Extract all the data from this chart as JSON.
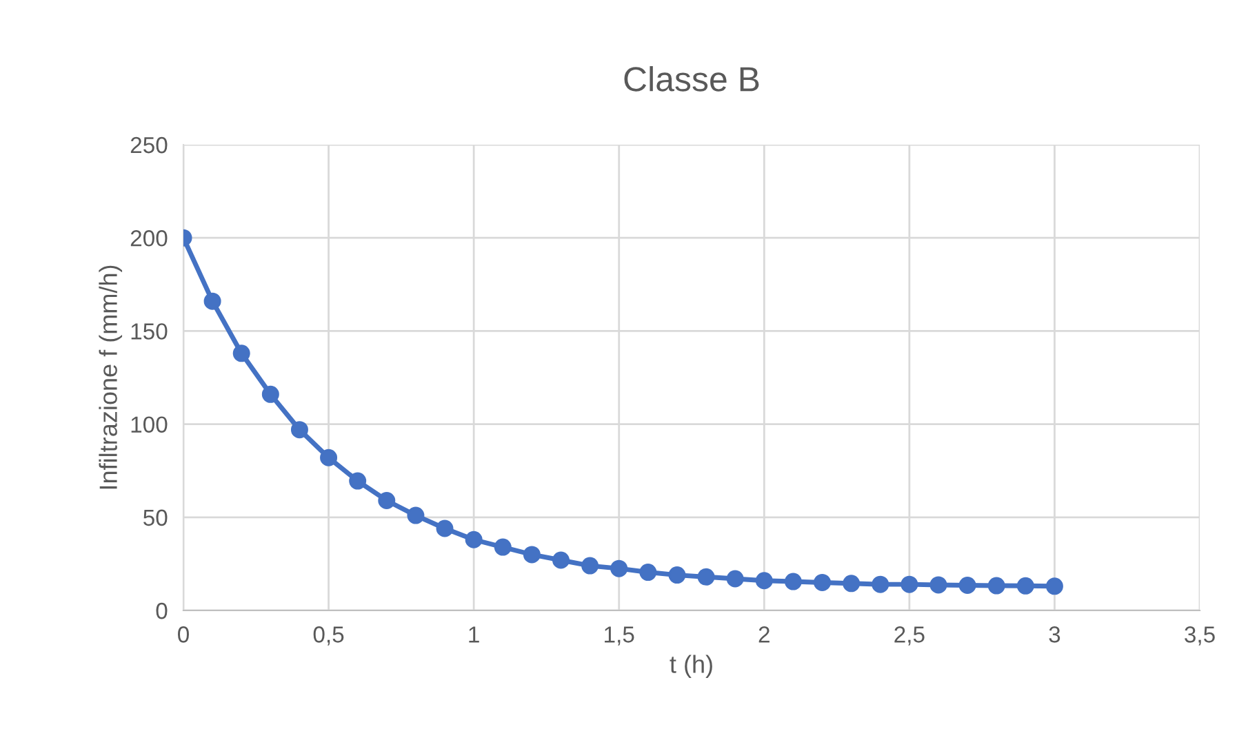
{
  "chart_data": {
    "type": "line",
    "title": "Classe B",
    "xlabel": "t (h)",
    "ylabel": "Infiltrazione f (mm/h)",
    "x": [
      0,
      0.1,
      0.2,
      0.3,
      0.4,
      0.5,
      0.6,
      0.7,
      0.8,
      0.9,
      1.0,
      1.1,
      1.2,
      1.3,
      1.4,
      1.5,
      1.6,
      1.7,
      1.8,
      1.9,
      2.0,
      2.1,
      2.2,
      2.3,
      2.4,
      2.5,
      2.6,
      2.7,
      2.8,
      2.9,
      3.0
    ],
    "series": [
      {
        "color": "#4472c4",
        "values": [
          200,
          166,
          138,
          116,
          97,
          82,
          69.5,
          59,
          51,
          44,
          38,
          34,
          30,
          27,
          24,
          22.5,
          20.5,
          19,
          18,
          17,
          16,
          15.5,
          15,
          14.5,
          14,
          14,
          13.7,
          13.5,
          13.3,
          13.2,
          13
        ]
      }
    ],
    "xlim": [
      0,
      3.5
    ],
    "xticks": [
      0,
      {
        "value": 0.5,
        "label": "0,5"
      },
      1,
      {
        "value": 1.5,
        "label": "1,5"
      },
      2,
      {
        "value": 2.5,
        "label": "2,5"
      },
      3,
      {
        "value": 3.5,
        "label": "3,5"
      }
    ],
    "ylim": [
      0,
      250
    ],
    "yticks": [
      0,
      50,
      100,
      150,
      200,
      250
    ],
    "grid": true,
    "legend": false,
    "marker": "circle",
    "line_style": "solid"
  }
}
